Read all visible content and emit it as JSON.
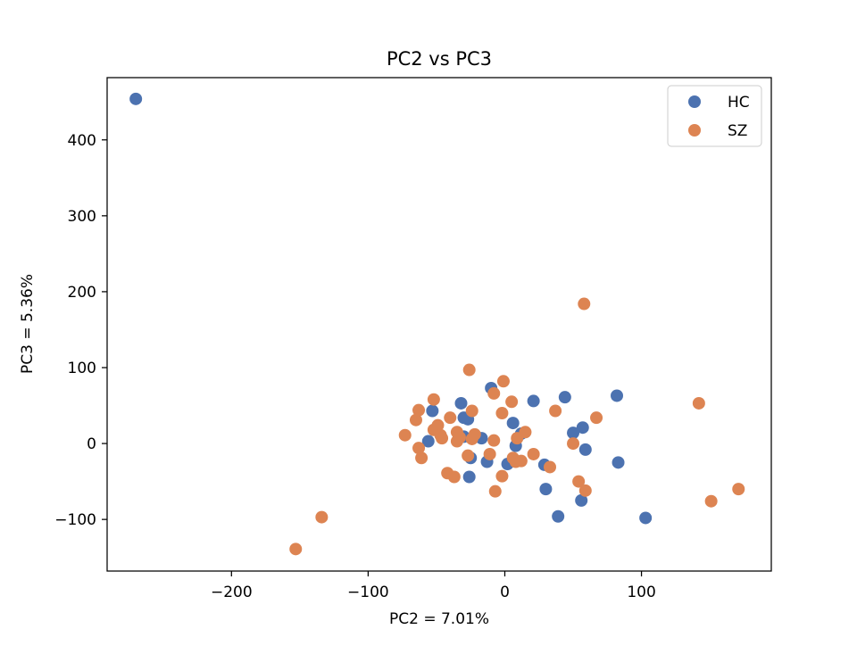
{
  "chart_data": {
    "type": "scatter",
    "title": "PC2 vs PC3",
    "xlabel": "PC2 = 7.01%",
    "ylabel": "PC3 = 5.36%",
    "xlim": [
      -291,
      195
    ],
    "ylim": [
      -168,
      482
    ],
    "xticks": [
      {
        "value": -200,
        "label": "−200"
      },
      {
        "value": -100,
        "label": "−100"
      },
      {
        "value": 0,
        "label": "0"
      },
      {
        "value": 100,
        "label": "100"
      }
    ],
    "yticks": [
      {
        "value": -100,
        "label": "−100"
      },
      {
        "value": 0,
        "label": "0"
      },
      {
        "value": 100,
        "label": "100"
      },
      {
        "value": 200,
        "label": "200"
      },
      {
        "value": 300,
        "label": "300"
      },
      {
        "value": 400,
        "label": "400"
      }
    ],
    "grid": false,
    "legend_position": "top-right",
    "series": [
      {
        "name": "HC",
        "color": "#4c72b0",
        "points": [
          [
            -270,
            454
          ],
          [
            -53,
            43
          ],
          [
            -56,
            3
          ],
          [
            -32,
            53
          ],
          [
            -30,
            34
          ],
          [
            -27,
            32
          ],
          [
            -30,
            9
          ],
          [
            -25,
            -19
          ],
          [
            -17,
            7
          ],
          [
            -13,
            -24
          ],
          [
            -10,
            73
          ],
          [
            2,
            -27
          ],
          [
            6,
            27
          ],
          [
            8,
            -3
          ],
          [
            12,
            13
          ],
          [
            21,
            56
          ],
          [
            29,
            -28
          ],
          [
            30,
            -60
          ],
          [
            39,
            -96
          ],
          [
            44,
            61
          ],
          [
            50,
            14
          ],
          [
            57,
            21
          ],
          [
            59,
            -8
          ],
          [
            56,
            -75
          ],
          [
            82,
            63
          ],
          [
            83,
            -25
          ],
          [
            103,
            -98
          ],
          [
            -26,
            -44
          ]
        ]
      },
      {
        "name": "SZ",
        "color": "#dd8452",
        "points": [
          [
            -153,
            -139
          ],
          [
            -134,
            -97
          ],
          [
            -73,
            11
          ],
          [
            -65,
            31
          ],
          [
            -63,
            44
          ],
          [
            -63,
            -6
          ],
          [
            -61,
            -19
          ],
          [
            -52,
            58
          ],
          [
            -52,
            18
          ],
          [
            -49,
            24
          ],
          [
            -47,
            11
          ],
          [
            -46,
            7
          ],
          [
            -42,
            -39
          ],
          [
            -40,
            34
          ],
          [
            -37,
            -44
          ],
          [
            -35,
            15
          ],
          [
            -35,
            3
          ],
          [
            -33,
            8
          ],
          [
            -26,
            97
          ],
          [
            -27,
            -16
          ],
          [
            -24,
            43
          ],
          [
            -24,
            6
          ],
          [
            -22,
            12
          ],
          [
            -11,
            -14
          ],
          [
            -8,
            66
          ],
          [
            -8,
            4
          ],
          [
            -7,
            -63
          ],
          [
            -2,
            40
          ],
          [
            -2,
            -43
          ],
          [
            -1,
            82
          ],
          [
            5,
            55
          ],
          [
            6,
            -19
          ],
          [
            8,
            -24
          ],
          [
            9,
            7
          ],
          [
            12,
            -23
          ],
          [
            15,
            15
          ],
          [
            21,
            -14
          ],
          [
            33,
            -31
          ],
          [
            37,
            43
          ],
          [
            50,
            0
          ],
          [
            54,
            -50
          ],
          [
            58,
            184
          ],
          [
            59,
            -62
          ],
          [
            67,
            34
          ],
          [
            142,
            53
          ],
          [
            151,
            -76
          ],
          [
            171,
            -60
          ]
        ]
      }
    ]
  }
}
